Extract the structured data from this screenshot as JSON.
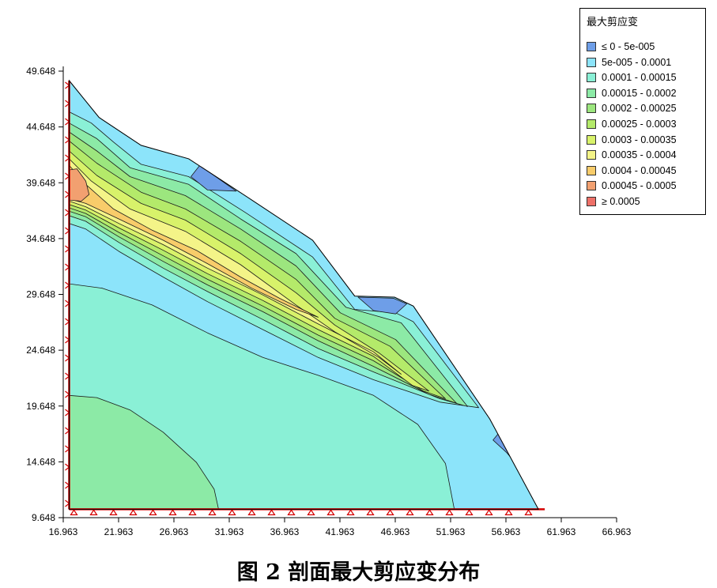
{
  "chart_data": {
    "type": "heatmap",
    "title": "",
    "caption": "图 2  剖面最大剪应变分布",
    "xlabel": "",
    "ylabel": "",
    "x_ticks": [
      "16.963",
      "21.963",
      "26.963",
      "31.963",
      "36.963",
      "41.963",
      "46.963",
      "51.963",
      "56.963",
      "61.963",
      "66.963"
    ],
    "y_ticks": [
      "9.648",
      "14.648",
      "19.648",
      "24.648",
      "29.648",
      "34.648",
      "39.648",
      "44.648",
      "49.648"
    ],
    "xlim": [
      16.963,
      66.963
    ],
    "ylim": [
      9.648,
      49.648
    ],
    "boundary": [
      [
        17.5,
        48.8
      ],
      [
        20.2,
        45.5
      ],
      [
        24.0,
        43.0
      ],
      [
        28.3,
        41.8
      ],
      [
        33.4,
        38.5
      ],
      [
        39.5,
        34.5
      ],
      [
        43.3,
        29.5
      ],
      [
        46.9,
        29.4
      ],
      [
        48.6,
        28.6
      ],
      [
        55.5,
        18.5
      ],
      [
        59.9,
        10.4
      ],
      [
        17.5,
        10.4
      ]
    ],
    "legend": {
      "title": "最大剪应变",
      "position": "top-right",
      "entries": [
        {
          "label": "≤ 0 - 5e-005",
          "color": "#6e9ee8"
        },
        {
          "label": "5e-005 - 0.0001",
          "color": "#8ce4fa"
        },
        {
          "label": "0.0001 - 0.00015",
          "color": "#8af0d6"
        },
        {
          "label": "0.00015 - 0.0002",
          "color": "#8ceaa6"
        },
        {
          "label": "0.0002 - 0.00025",
          "color": "#9ce67e"
        },
        {
          "label": "0.00025 - 0.0003",
          "color": "#b4ea6a"
        },
        {
          "label": "0.0003 - 0.00035",
          "color": "#d8f26a"
        },
        {
          "label": "0.00035 - 0.0004",
          "color": "#f4f488"
        },
        {
          "label": "0.0004 - 0.00045",
          "color": "#f8cc6a"
        },
        {
          "label": "0.00045 - 0.0005",
          "color": "#f2a070"
        },
        {
          "label": "≥ 0.0005",
          "color": "#ee7068"
        }
      ]
    },
    "zones": [
      {
        "level": "5e-005 - 0.0001",
        "polygon": [
          [
            17.5,
            48.8
          ],
          [
            20.2,
            45.5
          ],
          [
            24.0,
            43.0
          ],
          [
            28.3,
            41.8
          ],
          [
            33.4,
            38.5
          ],
          [
            39.5,
            34.5
          ],
          [
            43.3,
            29.5
          ],
          [
            46.9,
            29.4
          ],
          [
            48.6,
            28.6
          ],
          [
            55.5,
            18.5
          ],
          [
            59.9,
            10.4
          ],
          [
            17.5,
            10.4
          ]
        ]
      },
      {
        "level": "0.0001 - 0.00015",
        "polygon": [
          [
            17.5,
            30.6
          ],
          [
            20.5,
            30.2
          ],
          [
            25.0,
            28.7
          ],
          [
            30.0,
            26.2
          ],
          [
            35.0,
            24.0
          ],
          [
            40.0,
            22.4
          ],
          [
            45.0,
            20.6
          ],
          [
            49.0,
            18.0
          ],
          [
            51.5,
            14.5
          ],
          [
            52.3,
            10.4
          ],
          [
            17.5,
            10.4
          ]
        ]
      },
      {
        "level": "0.00015 - 0.0002",
        "polygon": [
          [
            17.5,
            20.6
          ],
          [
            20.0,
            20.4
          ],
          [
            23.0,
            19.3
          ],
          [
            26.0,
            17.3
          ],
          [
            29.0,
            14.6
          ],
          [
            30.6,
            12.2
          ],
          [
            31.0,
            10.4
          ],
          [
            17.5,
            10.4
          ]
        ]
      },
      {
        "level": "0.0001 - 0.00015",
        "polygon": [
          [
            17.5,
            46.0
          ],
          [
            19.5,
            45.0
          ],
          [
            21.5,
            43.3
          ],
          [
            24.0,
            41.3
          ],
          [
            28.3,
            40.2
          ],
          [
            33.4,
            37.0
          ],
          [
            39.5,
            33.0
          ],
          [
            43.3,
            28.3
          ],
          [
            47.0,
            28.0
          ],
          [
            48.6,
            27.2
          ],
          [
            54.5,
            19.5
          ],
          [
            51.0,
            20.0
          ],
          [
            45.0,
            22.0
          ],
          [
            40.0,
            24.0
          ],
          [
            35.0,
            26.5
          ],
          [
            30.0,
            29.0
          ],
          [
            26.0,
            31.2
          ],
          [
            22.0,
            33.5
          ],
          [
            19.0,
            35.5
          ],
          [
            17.5,
            36.0
          ]
        ]
      },
      {
        "level": "0.00015 - 0.0002",
        "polygon": [
          [
            17.5,
            45.0
          ],
          [
            20.0,
            43.6
          ],
          [
            23.0,
            41.0
          ],
          [
            28.3,
            39.5
          ],
          [
            33.0,
            36.4
          ],
          [
            38.0,
            33.3
          ],
          [
            42.5,
            28.5
          ],
          [
            47.5,
            27.1
          ],
          [
            48.4,
            26.0
          ],
          [
            53.5,
            19.6
          ],
          [
            51.0,
            20.3
          ],
          [
            45.0,
            22.7
          ],
          [
            40.0,
            24.8
          ],
          [
            35.0,
            27.4
          ],
          [
            30.0,
            29.9
          ],
          [
            26.0,
            32.0
          ],
          [
            22.0,
            34.3
          ],
          [
            19.0,
            36.2
          ],
          [
            17.5,
            36.7
          ]
        ]
      },
      {
        "level": "0.0002 - 0.00025",
        "polygon": [
          [
            17.5,
            44.2
          ],
          [
            20.0,
            42.5
          ],
          [
            23.0,
            40.2
          ],
          [
            28.0,
            38.5
          ],
          [
            33.0,
            35.5
          ],
          [
            38.0,
            32.2
          ],
          [
            42.0,
            28.0
          ],
          [
            47.0,
            25.6
          ],
          [
            52.5,
            19.9
          ],
          [
            50.0,
            20.7
          ],
          [
            45.0,
            23.2
          ],
          [
            40.0,
            25.5
          ],
          [
            35.0,
            28.1
          ],
          [
            30.0,
            30.5
          ],
          [
            26.0,
            32.6
          ],
          [
            22.0,
            34.8
          ],
          [
            19.0,
            36.6
          ],
          [
            17.5,
            37.1
          ]
        ]
      },
      {
        "level": "0.00025 - 0.0003",
        "polygon": [
          [
            17.5,
            43.4
          ],
          [
            20.0,
            41.4
          ],
          [
            24.0,
            38.8
          ],
          [
            28.0,
            37.3
          ],
          [
            33.0,
            34.4
          ],
          [
            38.0,
            31.0
          ],
          [
            41.5,
            27.5
          ],
          [
            46.5,
            25.0
          ],
          [
            51.5,
            20.3
          ],
          [
            49.5,
            21.0
          ],
          [
            45.0,
            23.7
          ],
          [
            40.0,
            26.0
          ],
          [
            35.0,
            28.6
          ],
          [
            30.0,
            31.0
          ],
          [
            26.0,
            33.1
          ],
          [
            22.0,
            35.2
          ],
          [
            19.0,
            36.9
          ],
          [
            17.5,
            37.4
          ]
        ]
      },
      {
        "level": "0.0003 - 0.00035",
        "polygon": [
          [
            17.5,
            42.5
          ],
          [
            20.0,
            40.3
          ],
          [
            24.0,
            37.8
          ],
          [
            28.0,
            36.3
          ],
          [
            33.0,
            33.3
          ],
          [
            38.0,
            29.8
          ],
          [
            41.5,
            26.9
          ],
          [
            45.5,
            24.4
          ],
          [
            50.0,
            21.0
          ],
          [
            48.5,
            21.5
          ],
          [
            45.0,
            24.1
          ],
          [
            40.0,
            26.5
          ],
          [
            35.0,
            29.1
          ],
          [
            30.0,
            31.5
          ],
          [
            26.0,
            33.6
          ],
          [
            22.0,
            35.6
          ],
          [
            19.0,
            37.2
          ],
          [
            17.5,
            37.7
          ]
        ]
      },
      {
        "level": "0.00035 - 0.0004",
        "polygon": [
          [
            17.5,
            41.8
          ],
          [
            19.5,
            39.8
          ],
          [
            23.0,
            37.3
          ],
          [
            28.0,
            35.3
          ],
          [
            33.0,
            32.3
          ],
          [
            38.0,
            28.7
          ],
          [
            41.5,
            26.3
          ],
          [
            45.5,
            24.0
          ],
          [
            47.5,
            22.5
          ],
          [
            45.0,
            24.5
          ],
          [
            40.0,
            27.0
          ],
          [
            35.0,
            29.6
          ],
          [
            30.0,
            32.0
          ],
          [
            26.0,
            34.1
          ],
          [
            22.0,
            36.0
          ],
          [
            19.0,
            37.5
          ],
          [
            17.5,
            38.0
          ]
        ]
      },
      {
        "level": "0.0004 - 0.00045",
        "polygon": [
          [
            17.5,
            41.2
          ],
          [
            19.0,
            39.5
          ],
          [
            21.5,
            37.3
          ],
          [
            25.0,
            35.4
          ],
          [
            29.0,
            33.6
          ],
          [
            33.0,
            31.2
          ],
          [
            36.5,
            29.3
          ],
          [
            40.0,
            27.6
          ],
          [
            38.0,
            28.3
          ],
          [
            34.0,
            30.2
          ],
          [
            30.0,
            32.4
          ],
          [
            26.0,
            34.5
          ],
          [
            22.0,
            36.4
          ],
          [
            19.0,
            37.8
          ],
          [
            17.5,
            38.2
          ]
        ]
      },
      {
        "level": "0.00045 - 0.0005",
        "polygon": [
          [
            17.5,
            40.8
          ],
          [
            18.2,
            40.9
          ],
          [
            19.0,
            39.8
          ],
          [
            19.3,
            38.6
          ],
          [
            18.6,
            38.0
          ],
          [
            17.5,
            38.1
          ]
        ]
      },
      {
        "level": "≤ 0 - 5e-005",
        "polygon": [
          [
            29.3,
            41.2
          ],
          [
            32.6,
            38.9
          ],
          [
            30.0,
            39.0
          ],
          [
            28.5,
            40.2
          ]
        ]
      },
      {
        "level": "≤ 0 - 5e-005",
        "polygon": [
          [
            43.6,
            29.4
          ],
          [
            46.8,
            29.3
          ],
          [
            48.0,
            28.8
          ],
          [
            47.0,
            27.9
          ],
          [
            45.0,
            28.2
          ]
        ]
      },
      {
        "level": "≤ 0 - 5e-005",
        "polygon": [
          [
            56.3,
            17.2
          ],
          [
            57.6,
            15.8
          ],
          [
            58.8,
            13.4
          ],
          [
            57.0,
            15.5
          ],
          [
            55.8,
            16.6
          ]
        ]
      }
    ]
  }
}
